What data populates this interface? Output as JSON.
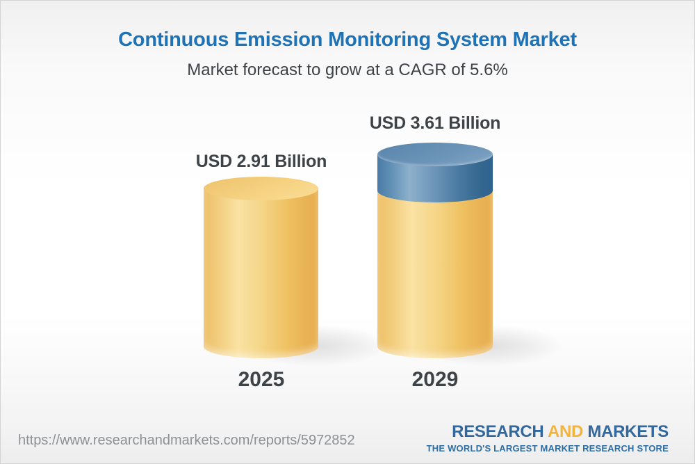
{
  "header": {
    "title": "Continuous Emission Monitoring System Market",
    "subtitle": "Market forecast to grow at a CAGR of 5.6%"
  },
  "chart_data": {
    "type": "bar",
    "subtype": "3d-cylinder-columns",
    "title": "Continuous Emission Monitoring System Market",
    "subtitle": "Market forecast to grow at a CAGR of 5.6%",
    "cagr_percent": 5.6,
    "unit": "USD Billion",
    "categories": [
      "2025",
      "2029"
    ],
    "values": [
      2.91,
      3.61
    ],
    "value_labels": [
      "USD 2.91 Billion",
      "USD 3.61 Billion"
    ],
    "segments_2029": {
      "base": 2.91,
      "growth": 0.7
    },
    "legend": "none",
    "grid": "none",
    "axes": "none",
    "colors": {
      "column_base": "#F2C76B",
      "column_growth_cap": "#4B7CA7",
      "title_text": "#1E72B6",
      "label_text": "#3E4347"
    }
  },
  "bars": [
    {
      "year": "2025",
      "value_label": "USD 2.91 Billion"
    },
    {
      "year": "2029",
      "value_label": "USD 3.61 Billion"
    }
  ],
  "footer": {
    "url": "https://www.researchandmarkets.com/reports/5972852",
    "logo": {
      "word1": "RESEARCH",
      "word2": "AND",
      "word3": "MARKETS",
      "tagline": "THE WORLD'S LARGEST MARKET RESEARCH STORE"
    }
  }
}
